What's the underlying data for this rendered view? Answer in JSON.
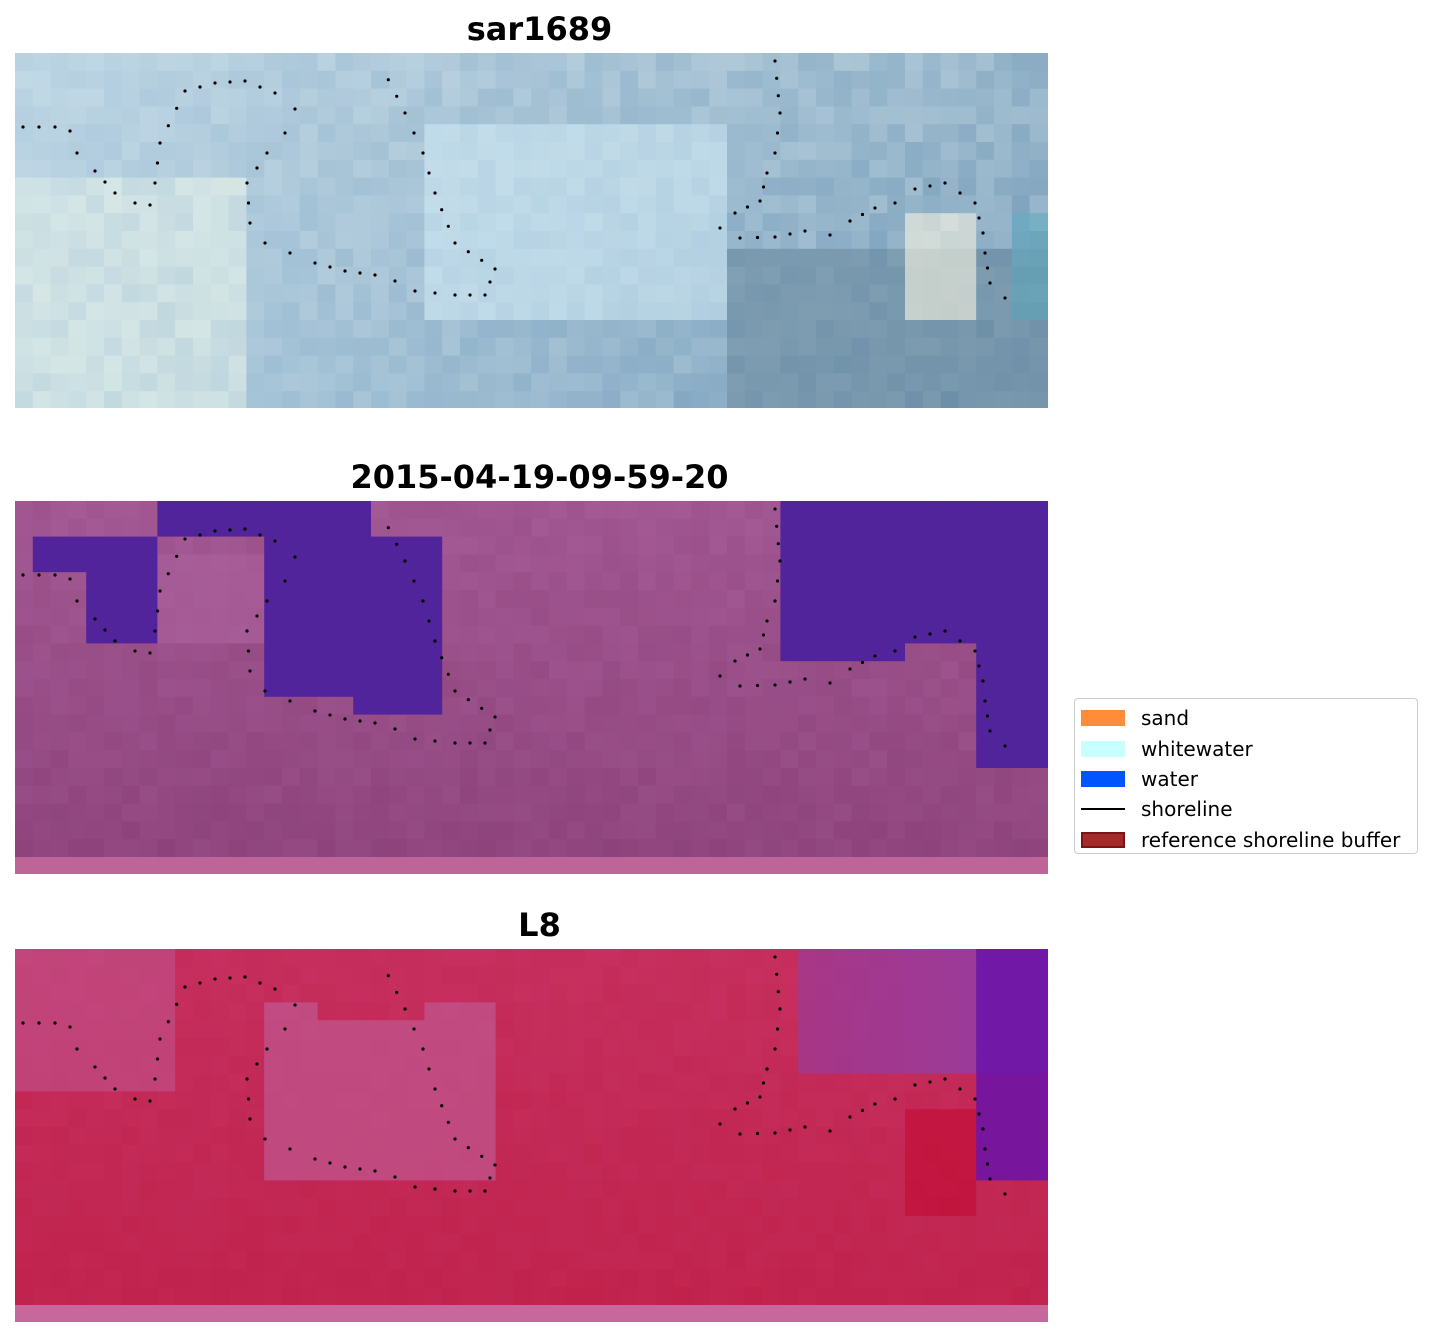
{
  "panels": [
    {
      "title": "sar1689",
      "image": "rgb-satellite-image"
    },
    {
      "title": "2015-04-19-09-59-20",
      "image": "classified-image"
    },
    {
      "title": "L8",
      "image": "ndwi-image"
    }
  ],
  "legend": {
    "items": [
      {
        "label": "sand",
        "color": "#ff8c3a",
        "kind": "patch"
      },
      {
        "label": "whitewater",
        "color": "#c8ffff",
        "kind": "patch"
      },
      {
        "label": "water",
        "color": "#0055ff",
        "kind": "patch"
      },
      {
        "label": "shoreline",
        "color": "#000000",
        "kind": "line"
      },
      {
        "label": "reference shoreline buffer",
        "color": "#a52a2a",
        "kind": "patch"
      }
    ]
  },
  "colors": {
    "shoreline_points": "#000000",
    "panel2_water": "#52249b",
    "panel2_land": "#a45a95",
    "panel2_border": "#bd6597",
    "panel3_land": "#c63060",
    "panel3_water": "#6a12a8",
    "panel3_border": "#c6689c"
  }
}
